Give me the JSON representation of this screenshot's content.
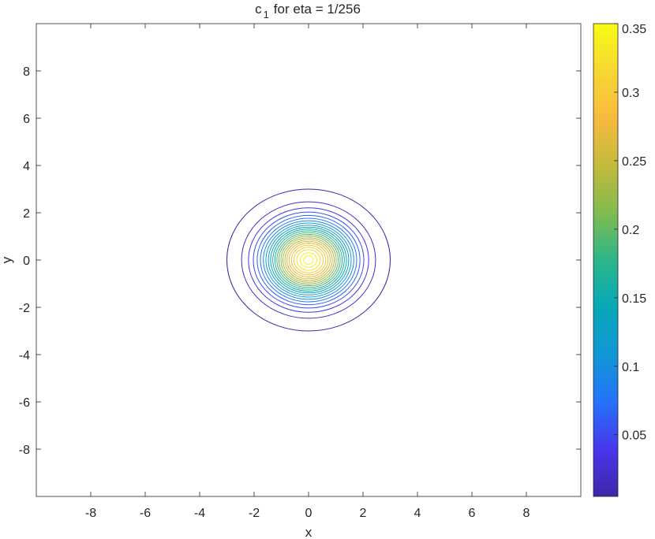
{
  "chart_data": {
    "type": "contour",
    "title": "c",
    "title_sub": "1",
    "title_rest": "for eta = 1/256",
    "xlabel": "x",
    "ylabel": "y",
    "xlim": [
      -10,
      10
    ],
    "ylim": [
      -10,
      10
    ],
    "xticks": [
      "-8",
      "-6",
      "-4",
      "-2",
      "0",
      "2",
      "4",
      "6",
      "8"
    ],
    "yticks": [
      "8",
      "6",
      "4",
      "2",
      "0",
      "-2",
      "-4",
      "-6",
      "-8"
    ],
    "grid": false,
    "peak": {
      "x": 0,
      "y": 0,
      "value": 0.35
    },
    "contour_levels": [
      0.005,
      0.02,
      0.035,
      0.05,
      0.065,
      0.08,
      0.095,
      0.11,
      0.125,
      0.14,
      0.155,
      0.17,
      0.185,
      0.2,
      0.215,
      0.23,
      0.245,
      0.26,
      0.275,
      0.29,
      0.305,
      0.32,
      0.335,
      0.345
    ],
    "outer_contour_radius": 3.0,
    "colorbar": {
      "min": 0.005,
      "max": 0.35,
      "ticks": [
        "0.05",
        "0.1",
        "0.15",
        "0.2",
        "0.25",
        "0.3",
        "0.35"
      ],
      "tick_values": [
        0.05,
        0.1,
        0.15,
        0.2,
        0.25,
        0.3,
        0.35
      ],
      "colormap": [
        "#3e26a8",
        "#4836ed",
        "#2473fa",
        "#1297d5",
        "#06a8b8",
        "#2cb689",
        "#81bb4f",
        "#c4ba3c",
        "#f8ba3e",
        "#f7d731",
        "#f9fb15"
      ]
    }
  }
}
